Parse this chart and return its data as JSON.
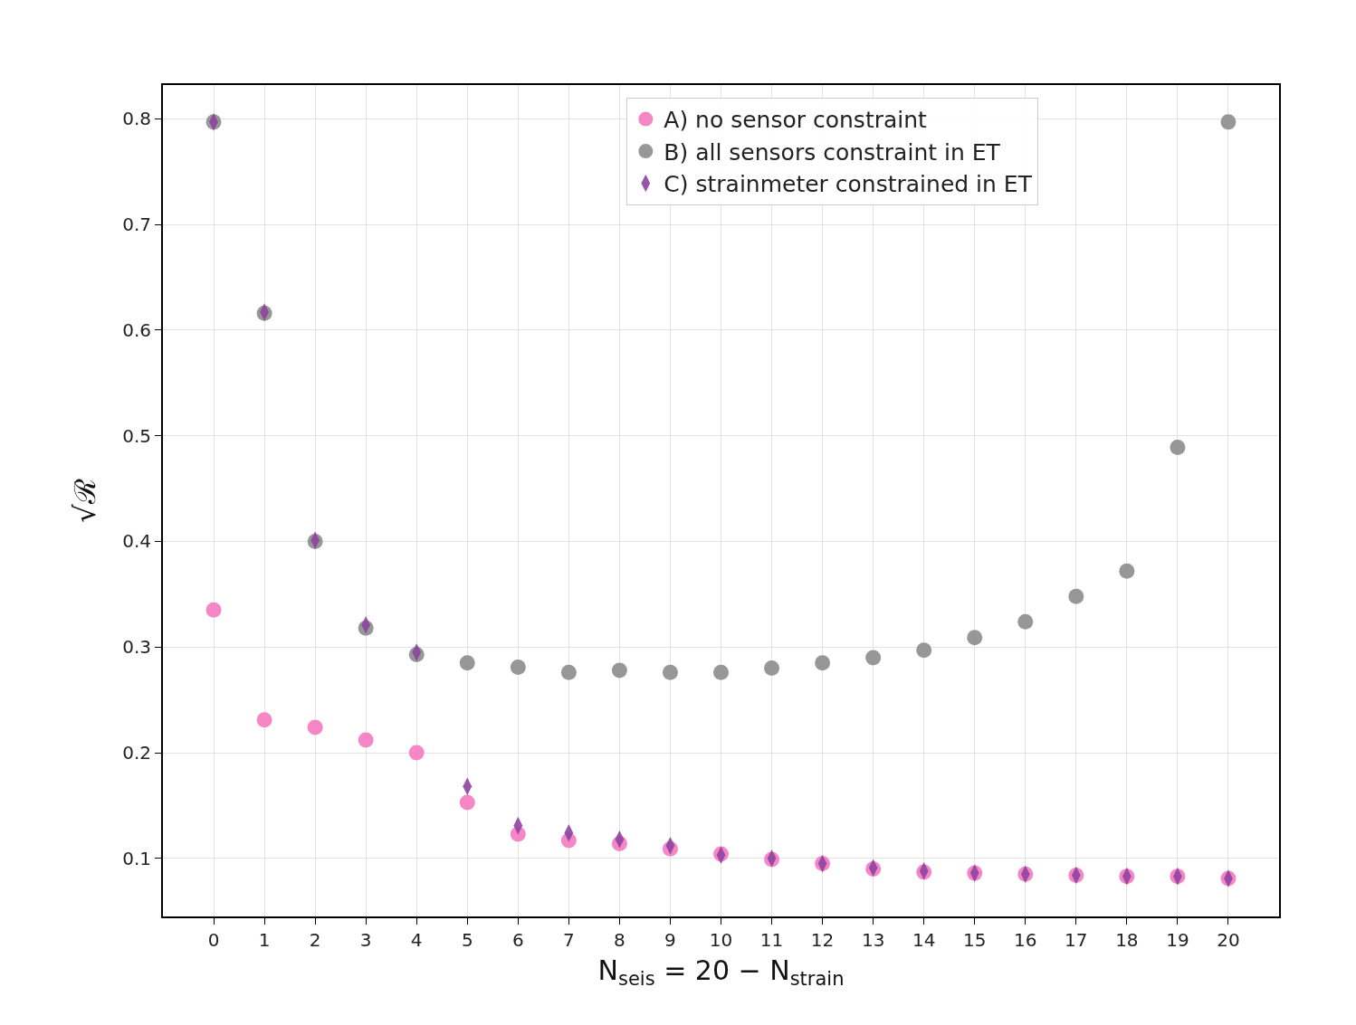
{
  "chart_data": {
    "type": "scatter",
    "xlabel": "N$_{seis}$ = 20 − N$_{strain}$",
    "ylabel": "√ℛ",
    "x": [
      0,
      1,
      2,
      3,
      4,
      5,
      6,
      7,
      8,
      9,
      10,
      11,
      12,
      13,
      14,
      15,
      16,
      17,
      18,
      19,
      20
    ],
    "series": [
      {
        "name": "A) no sensor constraint",
        "color": "#f47ac0",
        "marker": "circle",
        "values": [
          0.335,
          0.231,
          0.224,
          0.212,
          0.2,
          0.153,
          0.123,
          0.117,
          0.114,
          0.109,
          0.104,
          0.099,
          0.095,
          0.09,
          0.087,
          0.086,
          0.085,
          0.084,
          0.083,
          0.083,
          0.081
        ]
      },
      {
        "name": "B) all sensors constraint in ET",
        "color": "#8c8c8c",
        "marker": "circle",
        "values": [
          0.797,
          0.616,
          0.4,
          0.318,
          0.293,
          0.285,
          0.281,
          0.276,
          0.278,
          0.276,
          0.276,
          0.28,
          0.285,
          0.29,
          0.297,
          0.309,
          0.324,
          0.348,
          0.372,
          0.489,
          0.797
        ]
      },
      {
        "name": "C) strainmeter constrained in ET",
        "color": "#8e44a0",
        "marker": "diamond",
        "values": [
          0.797,
          0.617,
          0.401,
          0.321,
          0.295,
          0.168,
          0.131,
          0.124,
          0.118,
          0.112,
          0.103,
          0.1,
          0.095,
          0.091,
          0.088,
          0.086,
          0.085,
          0.084,
          0.083,
          0.083,
          0.081
        ]
      }
    ],
    "xlim": [
      -1,
      21
    ],
    "xticks": [
      0,
      1,
      2,
      3,
      4,
      5,
      6,
      7,
      8,
      9,
      10,
      11,
      12,
      13,
      14,
      15,
      16,
      17,
      18,
      19,
      20
    ],
    "ylim": [
      0.045,
      0.832
    ],
    "yticks": [
      0.1,
      0.2,
      0.3,
      0.4,
      0.5,
      0.6,
      0.7,
      0.8
    ],
    "grid": true,
    "legend": "top"
  }
}
